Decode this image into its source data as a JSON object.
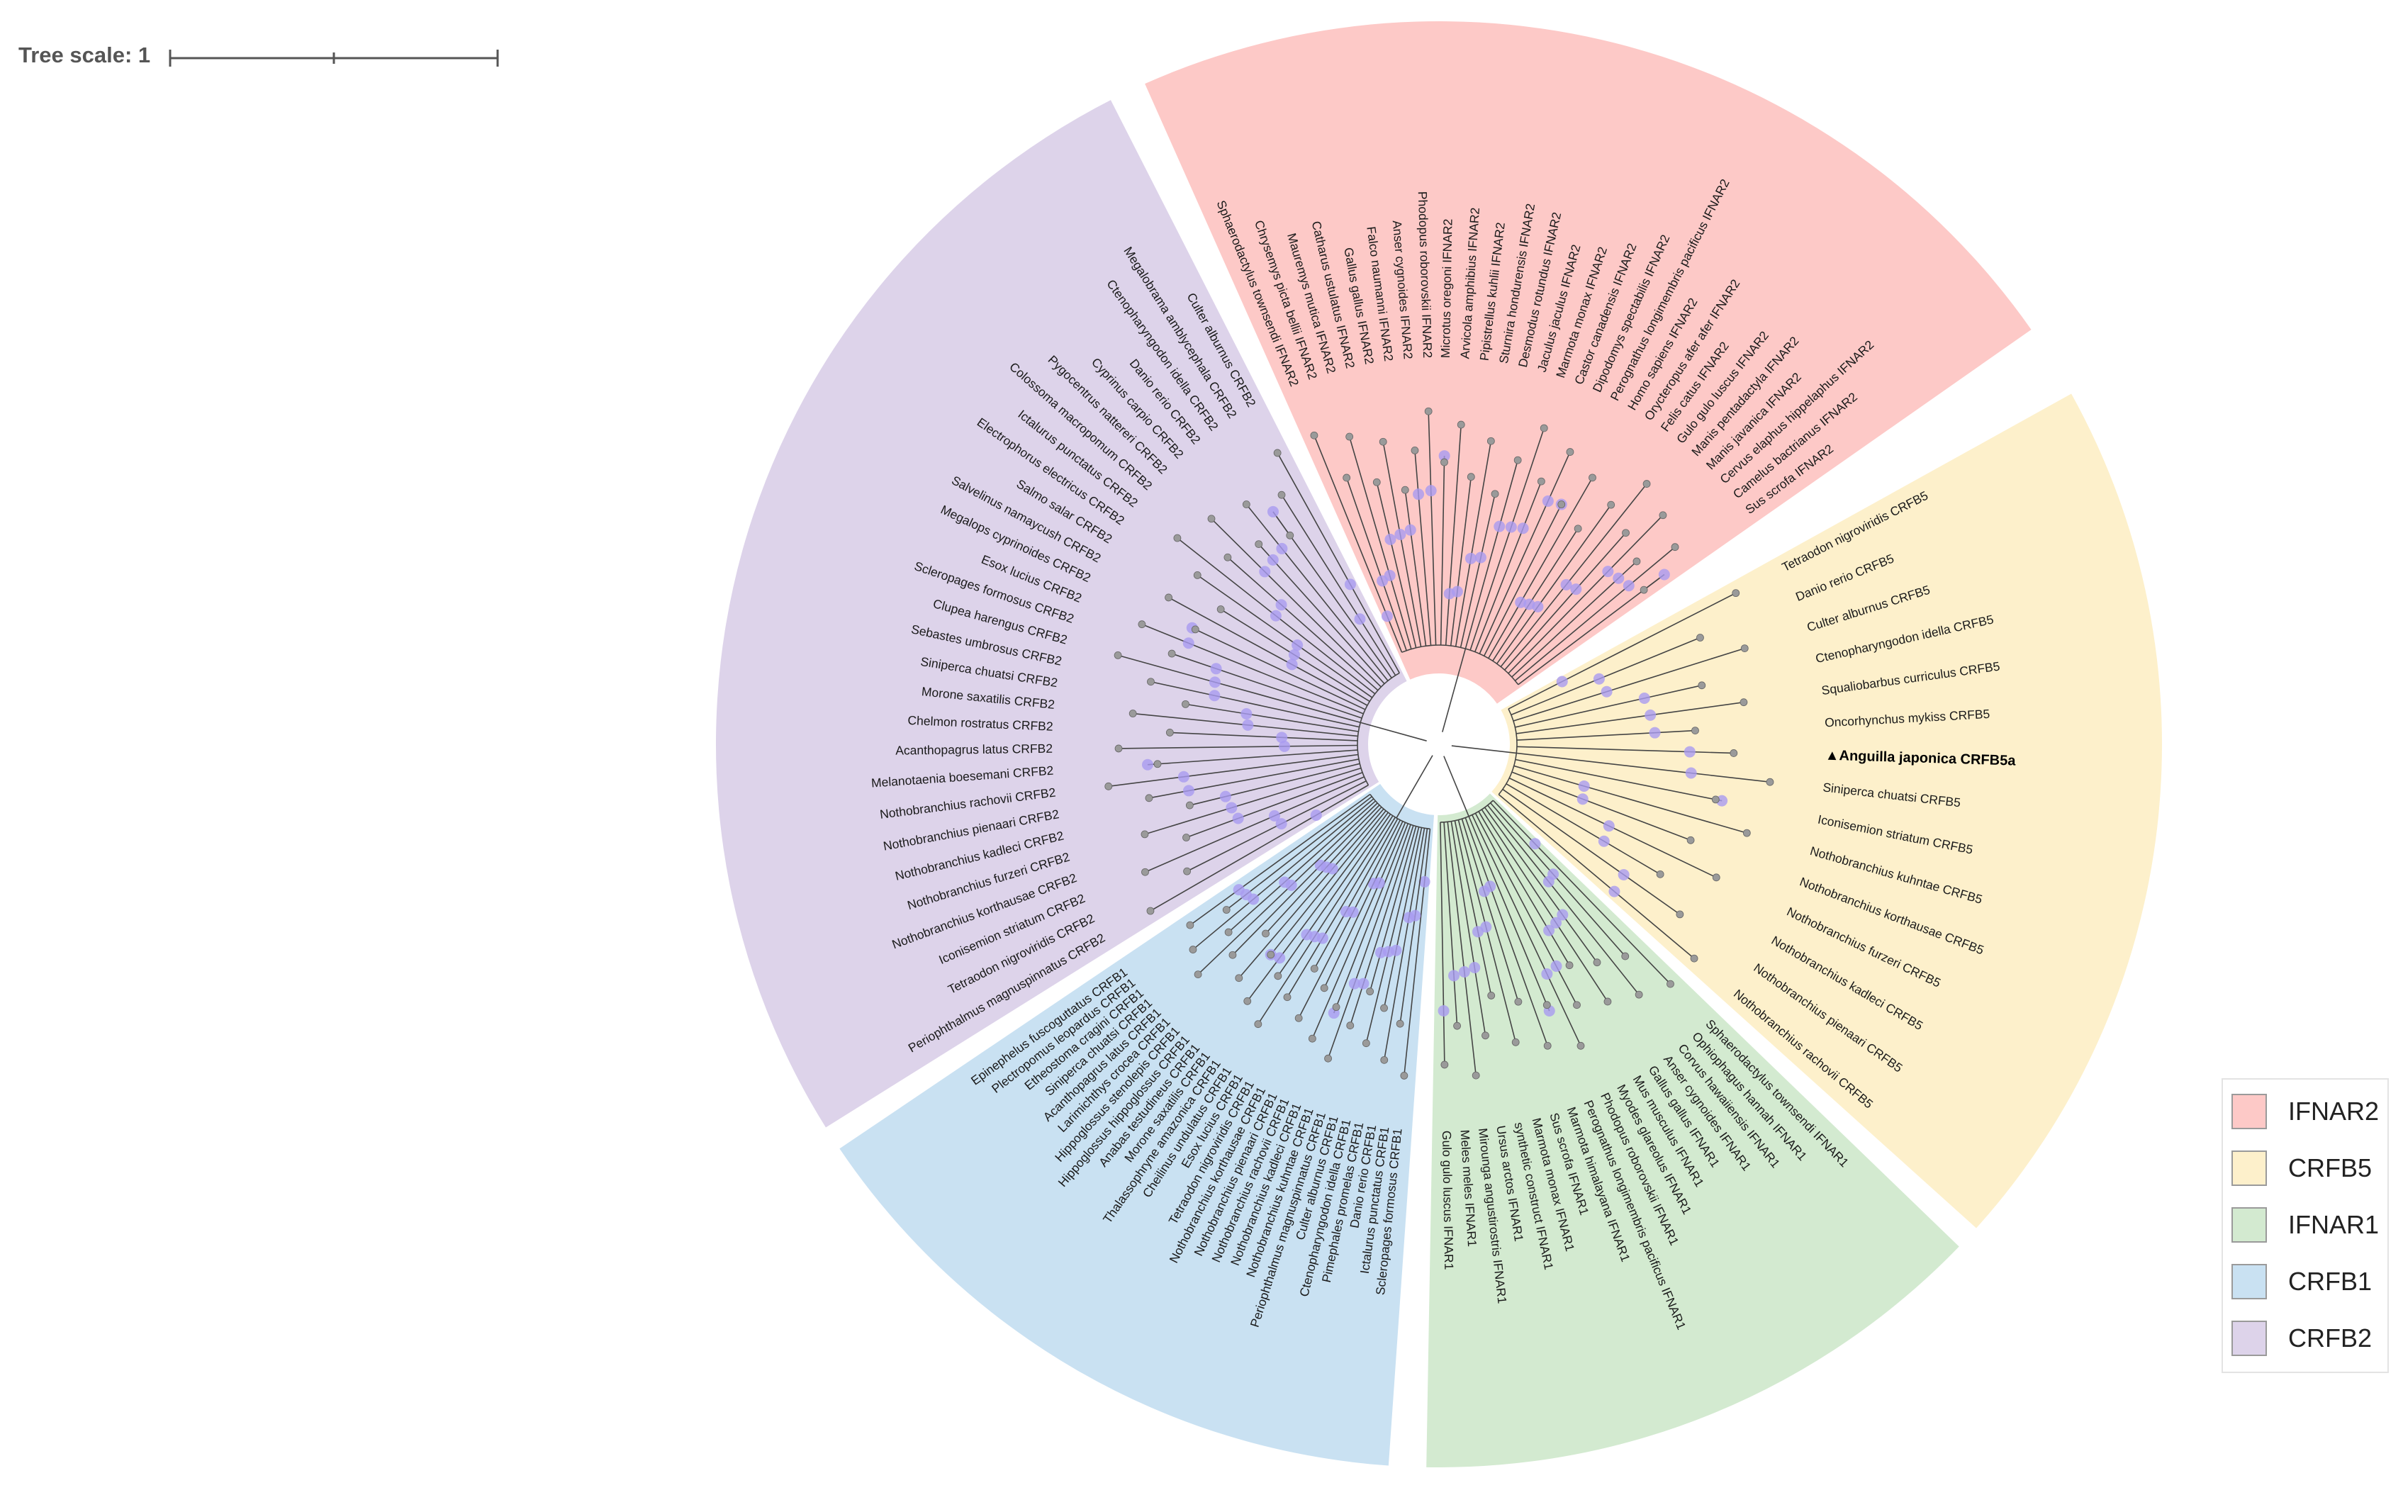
{
  "tree_scale": {
    "label": "Tree scale: 1"
  },
  "legend": [
    {
      "label": "IFNAR2",
      "color": "#fdc9c7"
    },
    {
      "label": "CRFB5",
      "color": "#fdf0cb"
    },
    {
      "label": "IFNAR1",
      "color": "#d3ead0"
    },
    {
      "label": "CRFB1",
      "color": "#c9e1f2"
    },
    {
      "label": "CRFB2",
      "color": "#ddd3ea"
    }
  ],
  "clades": [
    {
      "name": "IFNAR2",
      "color": "#fdc9c7",
      "leaves": [
        "Sphaerodactylus townsendi IFNAR2",
        "Chrysemys picta bellii IFNAR2",
        "Mauremys mutica IFNAR2",
        "Catharus ustulatus IFNAR2",
        "Gallus gallus IFNAR2",
        "Falco naumanni IFNAR2",
        "Anser cygnoides IFNAR2",
        "Phodopus roborovskii IFNAR2",
        "Microtus oregoni IFNAR2",
        "Arvicola amphibius IFNAR2",
        "Pipistrellus kuhlii IFNAR2",
        "Sturnira hondurensis IFNAR2",
        "Desmodus rotundus IFNAR2",
        "Jaculus jaculus IFNAR2",
        "Marmota monax IFNAR2",
        "Castor canadensis IFNAR2",
        "Dipodomys spectabilis IFNAR2",
        "Perognathus longimembris pacificus IFNAR2",
        "Homo sapiens IFNAR2",
        "Orycteropus afer afer IFNAR2",
        "Felis catus IFNAR2",
        "Gulo gulo luscus IFNAR2",
        "Manis pentadactyla IFNAR2",
        "Manis javanica IFNAR2",
        "Cervus elaphus hippelaphus IFNAR2",
        "Camelus bactrianus IFNAR2",
        "Sus scrofa IFNAR2"
      ]
    },
    {
      "name": "CRFB5",
      "color": "#fdf0cb",
      "leaves": [
        "Tetraodon nigroviridis CRFB5",
        "Danio rerio CRFB5",
        "Culter alburnus CRFB5",
        "Ctenopharyngodon idella CRFB5",
        "Squaliobarbus curriculus CRFB5",
        "Oncorhynchus mykiss CRFB5",
        "▲Anguilla japonica CRFB5a",
        "Siniperca chuatsi CRFB5",
        "Iconisemion striatum CRFB5",
        "Nothobranchius kuhntae CRFB5",
        "Nothobranchius korthausae CRFB5",
        "Nothobranchius furzeri CRFB5",
        "Nothobranchius kadleci CRFB5",
        "Nothobranchius pienaari CRFB5",
        "Nothobranchius rachovii CRFB5"
      ]
    },
    {
      "name": "IFNAR1",
      "color": "#d3ead0",
      "leaves": [
        "Sphaerodactylus townsendi IFNAR1",
        "Ophiophagus hannah IFNAR1",
        "Corvus hawaiiensis IFNAR1",
        "Anser cygnoides IFNAR1",
        "Gallus gallus IFNAR1",
        "Mus musculus IFNAR1",
        "Myodes glareolus IFNAR1",
        "Phodopus roborovskii IFNAR1",
        "Perognathus longimembris pacificus IFNAR1",
        "Marmota himalayana IFNAR1",
        "Sus scrofa IFNAR1",
        "Marmota monax IFNAR1",
        "synthetic construct IFNAR1",
        "Ursus arctos IFNAR1",
        "Mirounga angustirostris IFNAR1",
        "Meles meles IFNAR1",
        "Gulo gulo luscus IFNAR1"
      ]
    },
    {
      "name": "CRFB1",
      "color": "#c9e1f2",
      "leaves": [
        "Scleropages formosus CRFB1",
        "Ictalurus punctatus CRFB1",
        "Danio rerio CRFB1",
        "Pimephales promelas CRFB1",
        "Ctenopharyngodon idella CRFB1",
        "Culter alburnus CRFB1",
        "Periophthalmus magnuspinnatus CRFB1",
        "Nothobranchius kuhntae CRFB1",
        "Nothobranchius kadleci CRFB1",
        "Nothobranchius rachovii CRFB1",
        "Nothobranchius pienaari CRFB1",
        "Nothobranchius korthausae CRFB1",
        "Tetraodon nigroviridis CRFB1",
        "Esox lucius CRFB1",
        "Cheilinus undulatus CRFB1",
        "Thalassophryne amazonica CRFB1",
        "Morone saxatilis CRFB1",
        "Anabas testudineus CRFB1",
        "Hippoglossus hippoglossus CRFB1",
        "Hippoglossus stenolepis CRFB1",
        "Larimichthys crocea CRFB1",
        "Acanthopagrus latus CRFB1",
        "Siniperca chuatsi CRFB1",
        "Etheostoma cragini CRFB1",
        "Plectropomus leopardus CRFB1",
        "Epinephelus fuscoguttatus CRFB1"
      ]
    },
    {
      "name": "CRFB2",
      "color": "#ddd3ea",
      "leaves": [
        "Periophthalmus magnuspinnatus CRFB2",
        "Tetraodon nigroviridis CRFB2",
        "Iconisemion striatum CRFB2",
        "Nothobranchius korthausae CRFB2",
        "Nothobranchius furzeri CRFB2",
        "Nothobranchius kadleci CRFB2",
        "Nothobranchius pienaari CRFB2",
        "Nothobranchius rachovii CRFB2",
        "Melanotaenia boesemani CRFB2",
        "Acanthopagrus latus CRFB2",
        "Chelmon rostratus CRFB2",
        "Morone saxatilis CRFB2",
        "Siniperca chuatsi CRFB2",
        "Sebastes umbrosus CRFB2",
        "Clupea harengus CRFB2",
        "Scleropages formosus CRFB2",
        "Esox lucius CRFB2",
        "Megalops cyprinoides CRFB2",
        "Salvelinus namaycush CRFB2",
        "Salmo salar CRFB2",
        "Electrophorus electricus CRFB2",
        "Ictalurus punctatus CRFB2",
        "Colossoma macropomum CRFB2",
        "Pygocentrus nattereri CRFB2",
        "Cyprinus carpio CRFB2",
        "Danio rerio CRFB2",
        "Ctenopharyngodon idella CRFB2",
        "Megalobrama amblycephala CRFB2",
        "Culter alburnus CRFB2"
      ]
    }
  ]
}
